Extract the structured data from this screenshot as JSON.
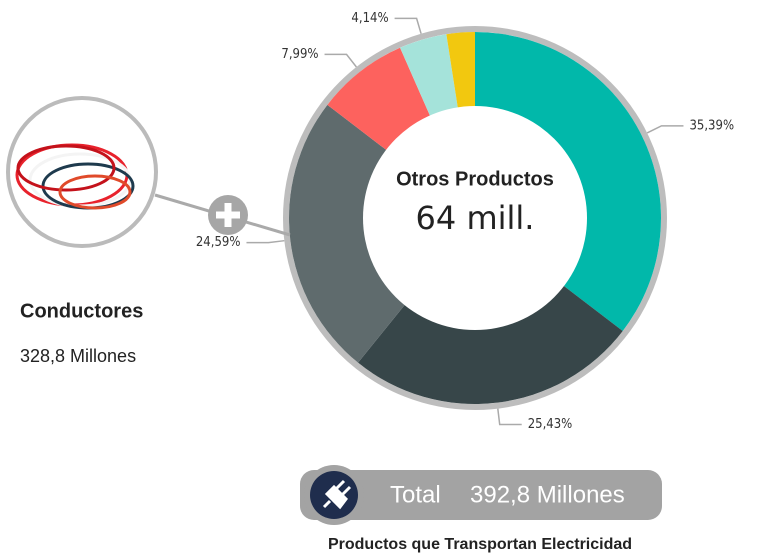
{
  "chart_data": {
    "type": "pie",
    "categories": [
      null,
      null,
      null,
      null,
      null,
      null
    ],
    "values": [
      35.39,
      25.43,
      24.59,
      7.99,
      4.14,
      2.46
    ],
    "value_labels": [
      "35,39%",
      "25,43%",
      "24,59%",
      "7,99%",
      "4,14%",
      null
    ],
    "colors": [
      "#01b8aa",
      "#374649",
      "#5f6b6d",
      "#fd625e",
      "#a5e3da",
      "#f2c80f"
    ],
    "center_title": "Otros Productos",
    "center_value": "64 mill."
  },
  "side_panel": {
    "title": "Conductores",
    "subtitle": "328,8 Millones"
  },
  "total_badge": {
    "label": "Total",
    "value": "392,8 Millones"
  },
  "footer": "Productos que Transportan Electricidad"
}
